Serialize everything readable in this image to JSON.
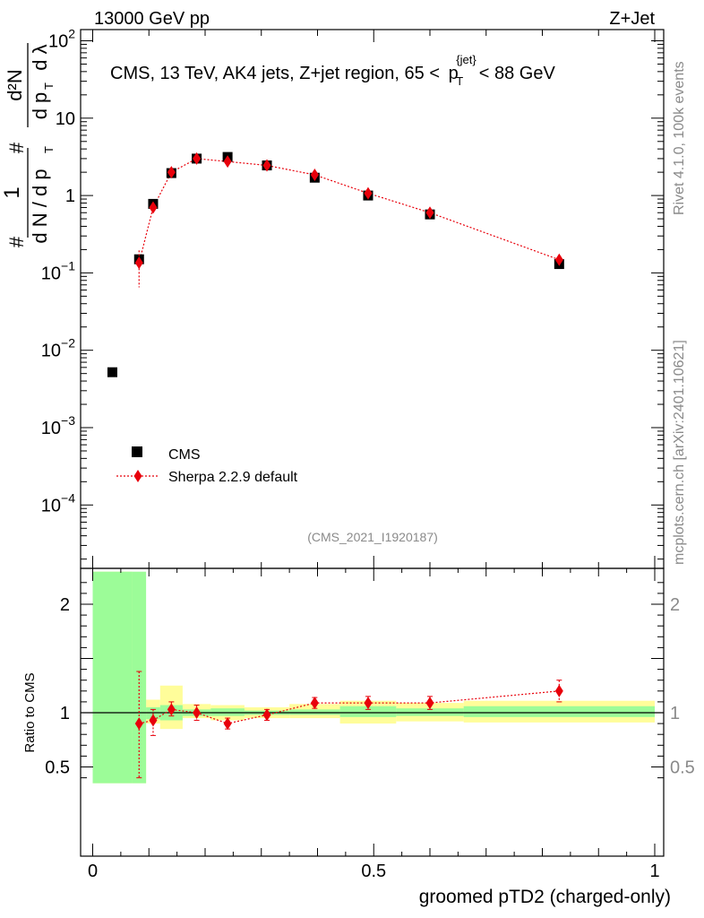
{
  "header": {
    "left": "13000 GeV pp",
    "right": "Z+Jet"
  },
  "side": {
    "rivet": "Rivet 4.1.0,  100k events",
    "mcplots": "mcplots.cern.ch [arXiv:2401.10621]"
  },
  "chart_data": [
    {
      "type": "scatter",
      "title": "CMS, 13 TeV, AK4 jets, Z+jet region, 65 < p_T^{jet} < 88 GeV",
      "title_parts": {
        "prefix": "CMS, 13 TeV, AK4 jets, Z+jet region, 65 <",
        "p": "p",
        "sub": "T",
        "sup": "{jet}",
        "suffix": "< 88 GeV"
      },
      "ylabel_parts": {
        "hash_outer": "#",
        "one": "1",
        "dN": "d N / d p",
        "T": "T",
        "hash_inner": "#",
        "d2N": "d²N",
        "dpT": "d p",
        "dlambda": "d λ"
      },
      "yscale": "log",
      "xlim": [
        -0.02,
        1.02
      ],
      "ylim": [
        2e-05,
        160
      ],
      "yticks": [
        0.0001,
        0.001,
        0.01,
        0.1,
        1,
        10,
        100
      ],
      "ytick_labels": [
        {
          "base": "10",
          "exp": "−4"
        },
        {
          "base": "10",
          "exp": "−3"
        },
        {
          "base": "10",
          "exp": "−2"
        },
        {
          "base": "10",
          "exp": "−1"
        },
        {
          "base": "1",
          "exp": ""
        },
        {
          "base": "10",
          "exp": ""
        },
        {
          "base": "10",
          "exp": "2"
        }
      ],
      "watermark": "(CMS_2021_I1920187)",
      "legend": {
        "position": "bottom-left",
        "entries": [
          "CMS",
          "Sherpa 2.2.9 default"
        ]
      },
      "series": [
        {
          "name": "CMS",
          "marker": "square",
          "color": "#000000",
          "x": [
            0.035,
            0.0825,
            0.1075,
            0.14,
            0.185,
            0.24,
            0.31,
            0.395,
            0.49,
            0.6,
            0.83
          ],
          "y": [
            0.0052,
            0.15,
            0.78,
            1.95,
            3.0,
            3.15,
            2.45,
            1.7,
            1.0,
            0.57,
            0.13
          ]
        },
        {
          "name": "Sherpa 2.2.9 default",
          "marker": "diamond",
          "line": "dotted",
          "color": "#e8000b",
          "x": [
            0.0825,
            0.1075,
            0.14,
            0.185,
            0.24,
            0.31,
            0.395,
            0.49,
            0.6,
            0.83
          ],
          "y": [
            0.135,
            0.7,
            2.0,
            3.0,
            2.75,
            2.45,
            1.85,
            1.07,
            0.6,
            0.148
          ],
          "yerr_low": [
            0.07,
            0.12,
            0.12,
            0.12,
            0.1,
            0.08,
            0.06,
            0.04,
            0.03,
            0.01
          ],
          "yerr_high": [
            0.06,
            0.1,
            0.1,
            0.12,
            0.1,
            0.08,
            0.06,
            0.04,
            0.03,
            0.01
          ]
        }
      ]
    },
    {
      "type": "scatter",
      "title": "",
      "ylabel": "Ratio to CMS",
      "xlabel": "groomed pTD2 (charged-only)",
      "xlim": [
        -0.02,
        1.02
      ],
      "ylim": [
        0.35,
        2.3
      ],
      "yticks": [
        0.5,
        1,
        2
      ],
      "ytick_labels": [
        "0.5",
        "1",
        "2"
      ],
      "xticks": [
        0,
        0.5,
        1
      ],
      "xtick_labels": [
        "0",
        "0.5",
        "1"
      ],
      "bands": {
        "bins": [
          [
            0.0,
            0.07
          ],
          [
            0.07,
            0.095
          ],
          [
            0.095,
            0.12
          ],
          [
            0.12,
            0.16
          ],
          [
            0.16,
            0.21
          ],
          [
            0.21,
            0.27
          ],
          [
            0.27,
            0.35
          ],
          [
            0.35,
            0.44
          ],
          [
            0.44,
            0.54
          ],
          [
            0.54,
            0.66
          ],
          [
            0.66,
            1.0
          ]
        ],
        "stat_low": [
          0.35,
          0.35,
          0.94,
          0.93,
          0.97,
          0.97,
          0.98,
          0.98,
          0.96,
          0.97,
          0.96
        ],
        "stat_high": [
          2.3,
          2.3,
          1.05,
          1.07,
          1.03,
          1.04,
          1.02,
          1.03,
          1.06,
          1.04,
          1.06
        ],
        "total_low": [
          0.35,
          0.35,
          0.9,
          0.85,
          0.95,
          0.93,
          0.95,
          0.95,
          0.9,
          0.92,
          0.91
        ],
        "total_high": [
          2.3,
          1.67,
          1.12,
          1.25,
          1.08,
          1.07,
          1.05,
          1.08,
          1.11,
          1.09,
          1.11
        ],
        "colors": {
          "stat": "#9cfc98",
          "total": "#fffd9a"
        }
      },
      "series": [
        {
          "name": "Sherpa 2.2.9 default",
          "color": "#e8000b",
          "x": [
            0.0825,
            0.1075,
            0.14,
            0.185,
            0.24,
            0.31,
            0.395,
            0.49,
            0.6,
            0.83
          ],
          "y": [
            0.9,
            0.93,
            1.03,
            1.0,
            0.9,
            0.98,
            1.09,
            1.09,
            1.09,
            1.2
          ],
          "yerr_low": [
            0.5,
            0.14,
            0.06,
            0.07,
            0.05,
            0.05,
            0.05,
            0.06,
            0.06,
            0.1
          ],
          "yerr_high": [
            0.48,
            0.1,
            0.07,
            0.07,
            0.05,
            0.05,
            0.05,
            0.06,
            0.06,
            0.1
          ]
        }
      ]
    }
  ]
}
